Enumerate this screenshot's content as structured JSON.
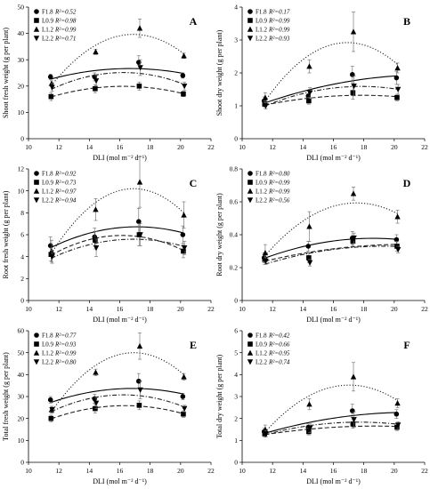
{
  "chart_data": [
    {
      "type": "scatter",
      "panel_letter": "A",
      "ylabel": "Shoot fresh weight (g per plant)",
      "xlabel": "DLI (mol m⁻² d⁻¹)",
      "xlim": [
        10,
        22
      ],
      "ylim": [
        0,
        50
      ],
      "xticks": [
        10,
        12,
        14,
        16,
        18,
        20,
        22
      ],
      "yticks": [
        0,
        10,
        20,
        30,
        40,
        50
      ],
      "legend_position": "top-left",
      "x": [
        11.5,
        14.4,
        17.3,
        20.2
      ],
      "series": [
        {
          "label": "F1.8",
          "r2_text": "R²=0.52",
          "marker": "circle",
          "linestyle": "solid",
          "values": [
            23.5,
            23.5,
            29,
            24
          ],
          "errors": [
            1.0,
            1.5,
            2.5,
            1.0
          ]
        },
        {
          "label": "L0.9",
          "r2_text": "R²=0.98",
          "marker": "square",
          "linestyle": "dashed",
          "values": [
            16,
            19,
            20,
            17
          ],
          "errors": [
            1.5,
            1.5,
            1.5,
            1.0
          ]
        },
        {
          "label": "L1.2",
          "r2_text": "R²=0.99",
          "marker": "triangle-up",
          "linestyle": "dotted",
          "values": [
            21,
            33,
            42,
            31.5
          ],
          "errors": [
            1.0,
            1.0,
            3.5,
            1.0
          ]
        },
        {
          "label": "L2.2",
          "r2_text": "R²=0.71",
          "marker": "triangle-down",
          "linestyle": "dashdot",
          "values": [
            19.5,
            22,
            27,
            20
          ],
          "errors": [
            1.5,
            2.0,
            3.0,
            1.5
          ]
        }
      ]
    },
    {
      "type": "scatter",
      "panel_letter": "B",
      "ylabel": "Shoot dry weight (g per plant)",
      "xlabel": "DLI (mol m⁻² d⁻¹)",
      "xlim": [
        10,
        22
      ],
      "ylim": [
        0,
        4
      ],
      "xticks": [
        10,
        12,
        14,
        16,
        18,
        20,
        22
      ],
      "yticks": [
        0,
        1,
        2,
        3,
        4
      ],
      "legend_position": "top-left",
      "x": [
        11.5,
        14.4,
        17.3,
        20.2
      ],
      "series": [
        {
          "label": "F1.8",
          "r2_text": "R²=0.17",
          "marker": "circle",
          "linestyle": "solid",
          "values": [
            1.15,
            1.3,
            1.95,
            1.85
          ],
          "errors": [
            0.12,
            0.15,
            0.25,
            0.2
          ]
        },
        {
          "label": "L0.9",
          "r2_text": "R²=0.99",
          "marker": "square",
          "linestyle": "dashed",
          "values": [
            1.05,
            1.15,
            1.4,
            1.25
          ],
          "errors": [
            0.1,
            0.1,
            0.2,
            0.1
          ]
        },
        {
          "label": "L1.2",
          "r2_text": "R²=0.99",
          "marker": "triangle-up",
          "linestyle": "dotted",
          "values": [
            1.25,
            2.2,
            3.25,
            2.15
          ],
          "errors": [
            0.15,
            0.2,
            0.6,
            0.15
          ]
        },
        {
          "label": "L2.2",
          "r2_text": "R²=0.93",
          "marker": "triangle-down",
          "linestyle": "dashdot",
          "values": [
            1.0,
            1.4,
            1.6,
            1.5
          ],
          "errors": [
            0.1,
            0.15,
            0.3,
            0.15
          ]
        }
      ]
    },
    {
      "type": "scatter",
      "panel_letter": "C",
      "ylabel": "Root fresh weight (g per plant)",
      "xlabel": "DLI (mol m⁻² d⁻¹)",
      "xlim": [
        10,
        22
      ],
      "ylim": [
        0,
        12
      ],
      "xticks": [
        10,
        12,
        14,
        16,
        18,
        20,
        22
      ],
      "yticks": [
        0,
        2,
        4,
        6,
        8,
        10,
        12
      ],
      "legend_position": "top-left",
      "x": [
        11.5,
        14.4,
        17.3,
        20.2
      ],
      "series": [
        {
          "label": "F1.8",
          "r2_text": "R²=0.92",
          "marker": "circle",
          "linestyle": "solid",
          "values": [
            5.0,
            5.8,
            7.2,
            6.0
          ],
          "errors": [
            0.8,
            0.8,
            1.2,
            0.8
          ]
        },
        {
          "label": "L0.9",
          "r2_text": "R²=0.73",
          "marker": "square",
          "linestyle": "dashed",
          "values": [
            4.2,
            5.5,
            6.0,
            4.5
          ],
          "errors": [
            0.6,
            0.8,
            1.0,
            0.6
          ]
        },
        {
          "label": "L1.2",
          "r2_text": "R²=0.97",
          "marker": "triangle-up",
          "linestyle": "dotted",
          "values": [
            4.5,
            8.3,
            10.8,
            7.8
          ],
          "errors": [
            1.0,
            1.0,
            2.3,
            1.2
          ]
        },
        {
          "label": "L2.2",
          "r2_text": "R²=0.94",
          "marker": "triangle-down",
          "linestyle": "dashdot",
          "values": [
            4.0,
            4.8,
            6.0,
            4.8
          ],
          "errors": [
            0.6,
            0.8,
            1.0,
            0.6
          ]
        }
      ]
    },
    {
      "type": "scatter",
      "panel_letter": "D",
      "ylabel": "Root dry weight (g per plant)",
      "xlabel": "DLI (mol m⁻² d⁻¹)",
      "xlim": [
        10,
        22
      ],
      "ylim": [
        0,
        0.8
      ],
      "xticks": [
        10,
        12,
        14,
        16,
        18,
        20,
        22
      ],
      "yticks": [
        0,
        0.2,
        0.4,
        0.6,
        0.8
      ],
      "legend_position": "top-left",
      "x": [
        11.5,
        14.4,
        17.3,
        20.2
      ],
      "series": [
        {
          "label": "F1.8",
          "r2_text": "R²=0.80",
          "marker": "circle",
          "linestyle": "solid",
          "values": [
            0.26,
            0.33,
            0.38,
            0.37
          ],
          "errors": [
            0.03,
            0.03,
            0.04,
            0.03
          ]
        },
        {
          "label": "L0.9",
          "r2_text": "R²=0.99",
          "marker": "square",
          "linestyle": "dashed",
          "values": [
            0.25,
            0.26,
            0.36,
            0.33
          ],
          "errors": [
            0.03,
            0.03,
            0.03,
            0.03
          ]
        },
        {
          "label": "L1.2",
          "r2_text": "R²=0.99",
          "marker": "triangle-up",
          "linestyle": "dotted",
          "values": [
            0.29,
            0.45,
            0.65,
            0.51
          ],
          "errors": [
            0.05,
            0.09,
            0.04,
            0.04
          ]
        },
        {
          "label": "L2.2",
          "r2_text": "R²=0.56",
          "marker": "triangle-down",
          "linestyle": "dashdot",
          "values": [
            0.24,
            0.23,
            0.38,
            0.31
          ],
          "errors": [
            0.02,
            0.02,
            0.03,
            0.02
          ]
        }
      ]
    },
    {
      "type": "scatter",
      "panel_letter": "E",
      "ylabel": "Total fresh weight (g per plant)",
      "xlabel": "DLI (mol m⁻² d⁻¹)",
      "xlim": [
        10,
        22
      ],
      "ylim": [
        0,
        60
      ],
      "xticks": [
        10,
        12,
        14,
        16,
        18,
        20,
        22
      ],
      "yticks": [
        0,
        10,
        20,
        30,
        40,
        50,
        60
      ],
      "legend_position": "top-left",
      "x": [
        11.5,
        14.4,
        17.3,
        20.2
      ],
      "series": [
        {
          "label": "F1.8",
          "r2_text": "R²=0.77",
          "marker": "circle",
          "linestyle": "solid",
          "values": [
            28.5,
            29,
            37,
            30
          ],
          "errors": [
            1.5,
            2.0,
            3.5,
            1.5
          ]
        },
        {
          "label": "L0.9",
          "r2_text": "R²=0.93",
          "marker": "square",
          "linestyle": "dashed",
          "values": [
            20,
            24.5,
            26,
            22
          ],
          "errors": [
            1.5,
            2.0,
            2.0,
            1.5
          ]
        },
        {
          "label": "L1.2",
          "r2_text": "R²=0.99",
          "marker": "triangle-up",
          "linestyle": "dotted",
          "values": [
            24,
            41,
            53,
            39
          ],
          "errors": [
            1.5,
            1.5,
            6.0,
            1.5
          ]
        },
        {
          "label": "L2.2",
          "r2_text": "R²=0.80",
          "marker": "triangle-down",
          "linestyle": "dashdot",
          "values": [
            24,
            27,
            33,
            24.5
          ],
          "errors": [
            1.5,
            2.5,
            4.0,
            1.5
          ]
        }
      ]
    },
    {
      "type": "scatter",
      "panel_letter": "F",
      "ylabel": "Total dry weight (g per plant)",
      "xlabel": "DLI (mol m⁻² d⁻¹)",
      "xlim": [
        10,
        22
      ],
      "ylim": [
        0,
        6
      ],
      "xticks": [
        10,
        12,
        14,
        16,
        18,
        20,
        22
      ],
      "yticks": [
        0,
        1,
        2,
        3,
        4,
        5,
        6
      ],
      "legend_position": "top-left",
      "x": [
        11.5,
        14.4,
        17.3,
        20.2
      ],
      "series": [
        {
          "label": "F1.8",
          "r2_text": "R²=0.42",
          "marker": "circle",
          "linestyle": "solid",
          "values": [
            1.4,
            1.6,
            2.35,
            2.2
          ],
          "errors": [
            0.15,
            0.15,
            0.3,
            0.2
          ]
        },
        {
          "label": "L0.9",
          "r2_text": "R²=0.66",
          "marker": "square",
          "linestyle": "dashed",
          "values": [
            1.3,
            1.4,
            1.75,
            1.6
          ],
          "errors": [
            0.15,
            0.15,
            0.2,
            0.15
          ]
        },
        {
          "label": "L1.2",
          "r2_text": "R²=0.95",
          "marker": "triangle-up",
          "linestyle": "dotted",
          "values": [
            1.5,
            2.65,
            3.9,
            2.7
          ],
          "errors": [
            0.2,
            0.25,
            0.65,
            0.2
          ]
        },
        {
          "label": "L2.2",
          "r2_text": "R²=0.74",
          "marker": "triangle-down",
          "linestyle": "dashdot",
          "values": [
            1.3,
            1.55,
            1.95,
            1.7
          ],
          "errors": [
            0.15,
            0.2,
            0.35,
            0.15
          ]
        }
      ]
    }
  ]
}
